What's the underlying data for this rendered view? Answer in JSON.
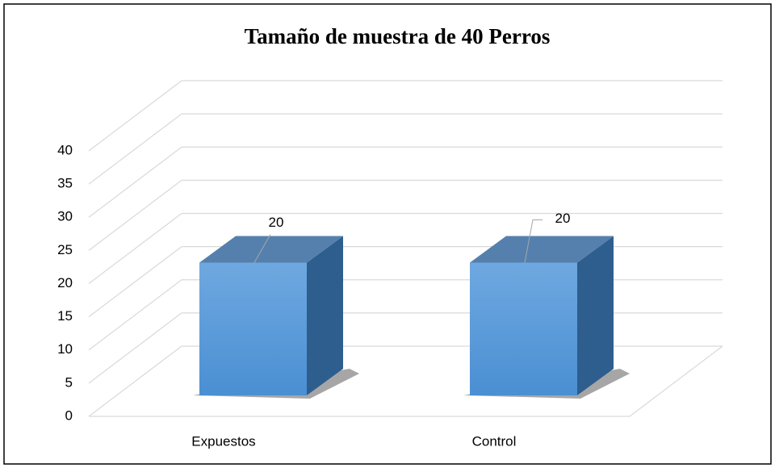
{
  "chart_data": {
    "type": "bar3d",
    "title": "Tamaño de muestra de 40 Perros",
    "categories": [
      "Expuestos",
      "Control"
    ],
    "values": [
      20,
      20
    ],
    "color": "#5b9bd5",
    "ylim": [
      0,
      40
    ],
    "yticks": [
      0,
      5,
      10,
      15,
      20,
      25,
      30,
      35,
      40
    ],
    "grid": true
  }
}
